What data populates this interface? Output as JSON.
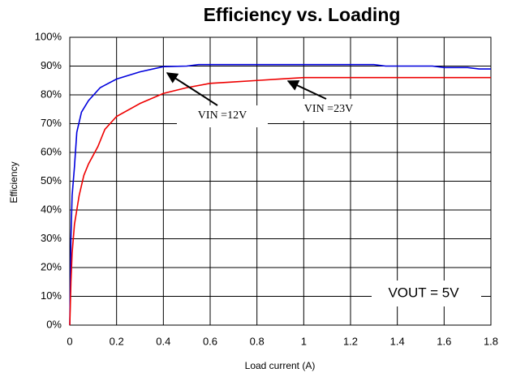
{
  "chart_data": {
    "type": "line",
    "title": "Efficiency vs. Loading",
    "xlabel": "Load current (A)",
    "ylabel": "Efficiency",
    "xlim": [
      0,
      1.8
    ],
    "xticks": [
      0,
      0.2,
      0.4,
      0.6,
      0.8,
      1,
      1.2,
      1.4,
      1.6,
      1.8
    ],
    "ylim": [
      0,
      100
    ],
    "yticks": [
      {
        "value": 0,
        "label": "0%"
      },
      {
        "value": 10,
        "label": "10%"
      },
      {
        "value": 20,
        "label": "20%"
      },
      {
        "value": 30,
        "label": "30%"
      },
      {
        "value": 40,
        "label": "40%"
      },
      {
        "value": 50,
        "label": "50%"
      },
      {
        "value": 60,
        "label": "60%"
      },
      {
        "value": 70,
        "label": "70%"
      },
      {
        "value": 80,
        "label": "80%"
      },
      {
        "value": 90,
        "label": "90%"
      },
      {
        "value": 100,
        "label": "100%"
      }
    ],
    "grid": true,
    "series": [
      {
        "name": "VIN =12V",
        "color": "#0000dd",
        "x": [
          0,
          0.005,
          0.01,
          0.02,
          0.03,
          0.05,
          0.08,
          0.13,
          0.2,
          0.3,
          0.4,
          0.5,
          0.55,
          0.8,
          1.0,
          1.3,
          1.35,
          1.55,
          1.6,
          1.7,
          1.75,
          1.8
        ],
        "values": [
          0,
          30,
          45,
          55,
          67,
          74,
          78,
          82.5,
          85.5,
          88,
          89.8,
          90,
          90.5,
          90.5,
          90.5,
          90.5,
          90,
          90,
          89.5,
          89.5,
          89,
          89
        ]
      },
      {
        "name": "VIN =23V",
        "color": "#ee0000",
        "x": [
          0,
          0.005,
          0.01,
          0.02,
          0.04,
          0.06,
          0.08,
          0.12,
          0.15,
          0.2,
          0.3,
          0.4,
          0.5,
          0.6,
          0.7,
          0.8,
          0.9,
          1.0,
          1.8
        ],
        "values": [
          0,
          15,
          25,
          35,
          45,
          52,
          56,
          62,
          68,
          72.5,
          77,
          80.5,
          82.5,
          84,
          84.5,
          85,
          85.5,
          86,
          86
        ]
      }
    ],
    "annotations": [
      "VOUT = 5V"
    ]
  }
}
